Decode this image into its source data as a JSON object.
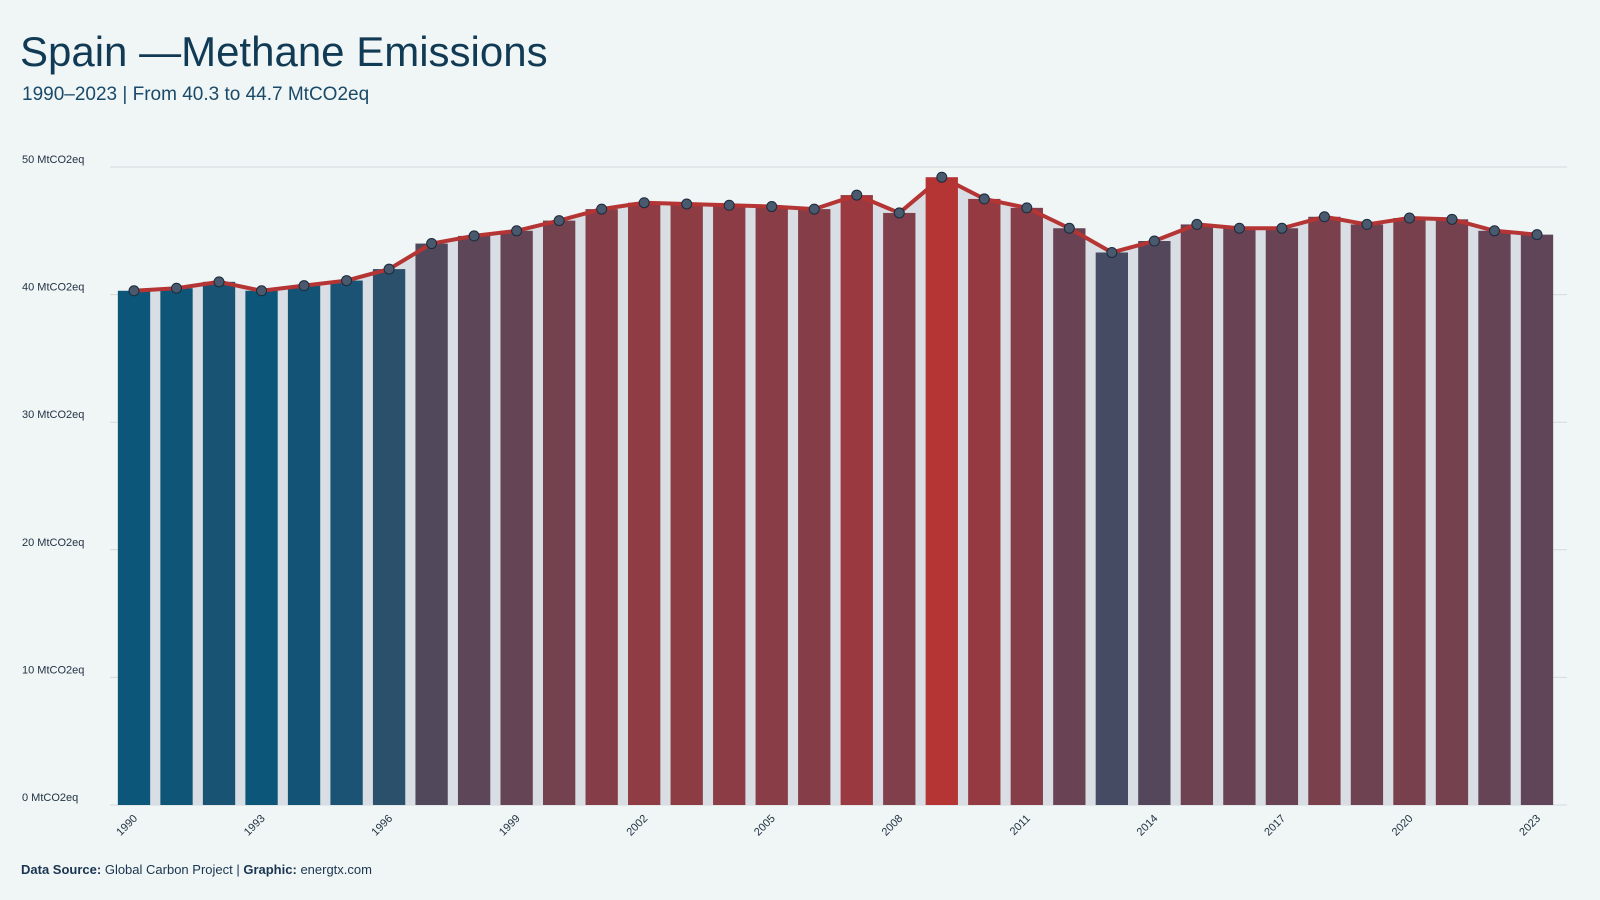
{
  "chart_data": {
    "type": "bar",
    "title": "Spain —Methane Emissions",
    "subtitle": "1990–2023 | From 40.3 to 44.7 MtCO2eq",
    "x": [
      1990,
      1991,
      1992,
      1993,
      1994,
      1995,
      1996,
      1997,
      1998,
      1999,
      2000,
      2001,
      2002,
      2003,
      2004,
      2005,
      2006,
      2007,
      2008,
      2009,
      2010,
      2011,
      2012,
      2013,
      2014,
      2015,
      2016,
      2017,
      2018,
      2019,
      2020,
      2021,
      2022,
      2023
    ],
    "values": [
      40.3,
      40.5,
      41.0,
      40.3,
      40.7,
      41.1,
      42.0,
      44.0,
      44.6,
      45.0,
      45.8,
      46.7,
      47.2,
      47.1,
      47.0,
      46.9,
      46.7,
      47.8,
      46.4,
      49.2,
      47.5,
      46.8,
      45.2,
      43.3,
      44.2,
      45.5,
      45.2,
      45.2,
      46.1,
      45.5,
      46.0,
      45.9,
      45.0,
      44.7
    ],
    "xticks": [
      1990,
      1993,
      1996,
      1999,
      2002,
      2005,
      2008,
      2011,
      2014,
      2017,
      2020,
      2023
    ],
    "ylim": [
      0,
      50
    ],
    "yticks": [
      {
        "value": 0,
        "label": "0 MtCO2eq"
      },
      {
        "value": 10,
        "label": "10 MtCO2eq"
      },
      {
        "value": 20,
        "label": "20 MtCO2eq"
      },
      {
        "value": 30,
        "label": "30 MtCO2eq"
      },
      {
        "value": 40,
        "label": "40 MtCO2eq"
      },
      {
        "value": 50,
        "label": "50 MtCO2eq"
      }
    ],
    "grid": true,
    "color_low": "#0b5679",
    "color_high": "#b53434",
    "line_color": "#b53434",
    "marker_color": "#4a5a6e",
    "area_color": "#d8dee3"
  },
  "footer": {
    "source_label": "Data Source:",
    "source": "Global Carbon Project |",
    "graphic_label": "Graphic:",
    "graphic": "energtx.com"
  }
}
